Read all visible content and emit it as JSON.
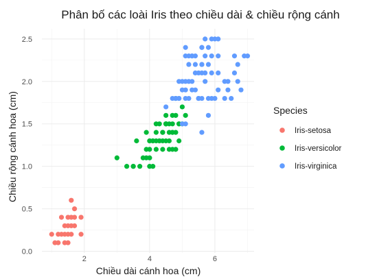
{
  "chart_data": {
    "type": "scatter",
    "title": "Phân bố các loài Iris theo chiều dài & chiều rộng cánh",
    "xlabel": "Chiều dài cánh hoa (cm)",
    "ylabel": "Chiều rộng cánh hoa (cm)",
    "xlim": [
      0.7,
      7.2
    ],
    "ylim": [
      -0.02,
      2.62
    ],
    "x_ticks": [
      2,
      4,
      6
    ],
    "y_ticks": [
      0.0,
      0.5,
      1.0,
      1.5,
      2.0,
      2.5
    ],
    "x_tick_labels": [
      "2",
      "4",
      "6"
    ],
    "y_tick_labels": [
      "0.0",
      "0.5",
      "1.0",
      "1.5",
      "2.0",
      "2.5"
    ],
    "grid": true,
    "legend": {
      "title": "Species",
      "position": "right"
    },
    "series": [
      {
        "name": "Iris-setosa",
        "color": "#F8766D",
        "points": [
          [
            1.4,
            0.2
          ],
          [
            1.3,
            0.2
          ],
          [
            1.5,
            0.2
          ],
          [
            1.7,
            0.4
          ],
          [
            1.4,
            0.3
          ],
          [
            1.5,
            0.1
          ],
          [
            1.6,
            0.2
          ],
          [
            1.1,
            0.1
          ],
          [
            1.2,
            0.2
          ],
          [
            1.3,
            0.4
          ],
          [
            1.7,
            0.3
          ],
          [
            1.0,
            0.2
          ],
          [
            1.7,
            0.5
          ],
          [
            1.9,
            0.2
          ],
          [
            1.6,
            0.4
          ],
          [
            1.5,
            0.4
          ],
          [
            1.4,
            0.1
          ],
          [
            1.6,
            0.6
          ],
          [
            1.9,
            0.4
          ],
          [
            1.6,
            0.3
          ],
          [
            1.2,
            0.1
          ],
          [
            1.5,
            0.3
          ]
        ]
      },
      {
        "name": "Iris-versicolor",
        "color": "#00BA38",
        "points": [
          [
            4.7,
            1.4
          ],
          [
            4.5,
            1.5
          ],
          [
            4.9,
            1.5
          ],
          [
            4.0,
            1.3
          ],
          [
            4.6,
            1.5
          ],
          [
            3.3,
            1.0
          ],
          [
            4.6,
            1.3
          ],
          [
            3.9,
            1.4
          ],
          [
            3.5,
            1.0
          ],
          [
            4.2,
            1.5
          ],
          [
            4.0,
            1.0
          ],
          [
            4.7,
            1.4
          ],
          [
            3.6,
            1.3
          ],
          [
            4.4,
            1.4
          ],
          [
            4.5,
            1.5
          ],
          [
            4.1,
            1.0
          ],
          [
            4.5,
            1.5
          ],
          [
            3.9,
            1.1
          ],
          [
            4.8,
            1.8
          ],
          [
            4.0,
            1.3
          ],
          [
            4.9,
            1.5
          ],
          [
            4.7,
            1.2
          ],
          [
            4.3,
            1.3
          ],
          [
            4.4,
            1.4
          ],
          [
            4.8,
            1.4
          ],
          [
            5.0,
            1.7
          ],
          [
            4.5,
            1.5
          ],
          [
            3.8,
            1.1
          ],
          [
            3.7,
            1.0
          ],
          [
            5.1,
            1.6
          ],
          [
            4.5,
            1.6
          ],
          [
            4.7,
            1.5
          ],
          [
            4.4,
            1.3
          ],
          [
            4.1,
            1.3
          ],
          [
            4.0,
            1.2
          ],
          [
            4.4,
            1.2
          ],
          [
            4.6,
            1.4
          ],
          [
            3.0,
            1.1
          ],
          [
            4.2,
            1.3
          ],
          [
            4.2,
            1.2
          ],
          [
            4.3,
            1.3
          ],
          [
            4.1,
            1.3
          ],
          [
            4.8,
            1.6
          ],
          [
            4.7,
            1.6
          ],
          [
            4.5,
            1.3
          ],
          [
            5.0,
            1.5
          ],
          [
            4.2,
            1.4
          ],
          [
            4.8,
            1.2
          ],
          [
            3.9,
            1.2
          ],
          [
            4.6,
            1.2
          ],
          [
            4.0,
            1.1
          ],
          [
            4.3,
            1.5
          ],
          [
            4.9,
            1.3
          ],
          [
            3.5,
            1.0
          ]
        ]
      },
      {
        "name": "Iris-virginica",
        "color": "#619CFF",
        "points": [
          [
            6.0,
            2.5
          ],
          [
            5.1,
            1.9
          ],
          [
            5.9,
            2.1
          ],
          [
            5.6,
            1.8
          ],
          [
            5.8,
            2.2
          ],
          [
            6.6,
            2.1
          ],
          [
            4.5,
            1.7
          ],
          [
            6.3,
            1.8
          ],
          [
            5.8,
            1.8
          ],
          [
            6.1,
            2.5
          ],
          [
            5.1,
            2.0
          ],
          [
            5.3,
            1.9
          ],
          [
            5.5,
            2.1
          ],
          [
            5.0,
            2.0
          ],
          [
            5.1,
            2.4
          ],
          [
            5.3,
            2.3
          ],
          [
            5.5,
            1.8
          ],
          [
            6.7,
            2.2
          ],
          [
            6.9,
            2.3
          ],
          [
            5.0,
            1.5
          ],
          [
            5.7,
            2.3
          ],
          [
            4.9,
            2.0
          ],
          [
            6.7,
            2.0
          ],
          [
            4.9,
            1.8
          ],
          [
            5.7,
            2.1
          ],
          [
            6.0,
            1.8
          ],
          [
            4.8,
            1.8
          ],
          [
            4.9,
            1.8
          ],
          [
            5.6,
            2.1
          ],
          [
            5.8,
            1.6
          ],
          [
            6.1,
            1.9
          ],
          [
            6.4,
            2.0
          ],
          [
            5.6,
            2.2
          ],
          [
            5.1,
            1.5
          ],
          [
            5.6,
            1.4
          ],
          [
            6.1,
            2.3
          ],
          [
            5.6,
            2.4
          ],
          [
            5.5,
            1.8
          ],
          [
            4.8,
            1.8
          ],
          [
            5.4,
            2.1
          ],
          [
            5.6,
            2.4
          ],
          [
            5.1,
            2.3
          ],
          [
            5.9,
            2.3
          ],
          [
            5.7,
            2.5
          ],
          [
            5.2,
            2.3
          ],
          [
            5.0,
            1.9
          ],
          [
            5.2,
            2.0
          ],
          [
            5.4,
            2.3
          ],
          [
            5.1,
            1.8
          ],
          [
            6.3,
            2.0
          ],
          [
            7.0,
            2.3
          ],
          [
            5.3,
            2.3
          ],
          [
            6.8,
            1.9
          ],
          [
            5.9,
            2.5
          ],
          [
            5.4,
            2.2
          ],
          [
            6.5,
            1.8
          ],
          [
            5.8,
            2.4
          ],
          [
            5.6,
            2.2
          ],
          [
            6.1,
            2.1
          ],
          [
            6.4,
            1.9
          ],
          [
            5.7,
            2.0
          ],
          [
            5.3,
            2.0
          ],
          [
            4.7,
            1.8
          ],
          [
            5.4,
            1.9
          ],
          [
            5.9,
            1.8
          ],
          [
            5.2,
            1.8
          ],
          [
            5.5,
            1.8
          ],
          [
            6.6,
            2.3
          ],
          [
            5.2,
            2.2
          ]
        ]
      }
    ]
  }
}
